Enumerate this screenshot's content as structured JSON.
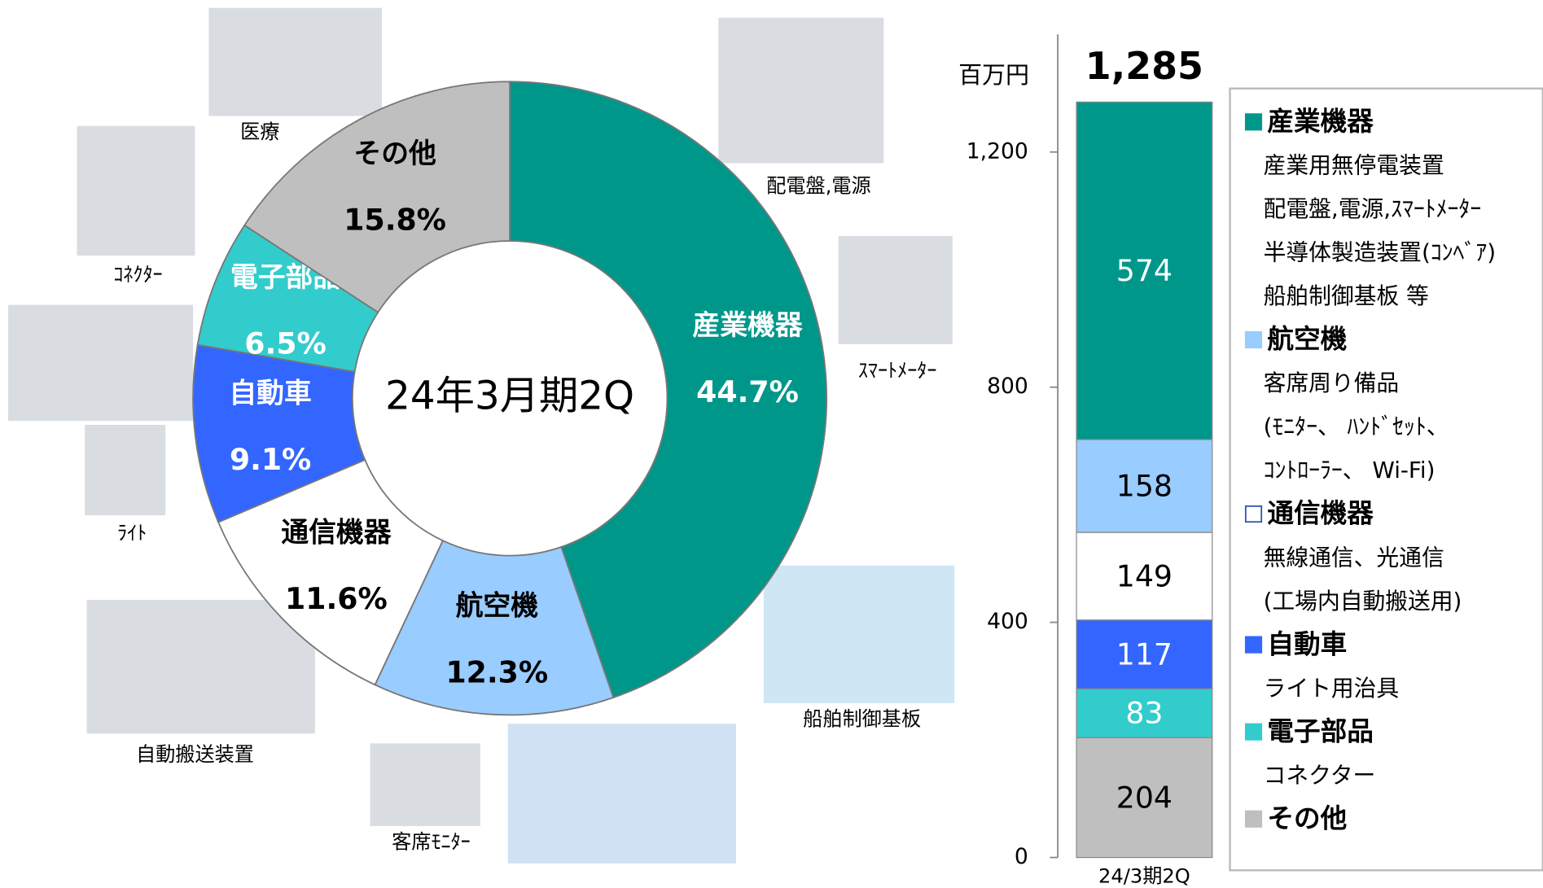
{
  "chart_data": [
    {
      "type": "pie",
      "center_label": "24年3月期2Q",
      "categories": [
        "産業機器",
        "航空機",
        "通信機器",
        "自動車",
        "電子部品",
        "その他"
      ],
      "values": [
        44.7,
        12.3,
        11.6,
        9.1,
        6.5,
        15.8
      ],
      "value_labels": [
        "44.7%",
        "12.3%",
        "11.6%",
        "9.1%",
        "6.5%",
        "15.8%"
      ],
      "colors": [
        "#00978b",
        "#99ccff",
        "#ffffff",
        "#3366ff",
        "#33cccc",
        "#bfbfbf"
      ],
      "photo_captions": [
        "医療",
        "配電盤,電源",
        "ｽﾏｰﾄﾒｰﾀｰ",
        "ｺﾈｸﾀｰ",
        "ﾗｲﾄ",
        "船舶制御基板",
        "自動搬送装置",
        "客席ﾓﾆﾀｰ"
      ]
    },
    {
      "type": "stacked_bar",
      "y_label": "百万円",
      "categories": [
        "24/3期2Q"
      ],
      "total": 1285,
      "total_label": "1,285",
      "ylim": [
        0,
        1400
      ],
      "yticks": [
        0,
        400,
        800,
        {
          "value": 1200,
          "label": "1,200"
        }
      ],
      "series": [
        {
          "name": "産業機器",
          "color": "#00978b",
          "values": [
            574
          ],
          "description": [
            "産業用無停電装置",
            "配電盤,電源,ｽﾏｰﾄﾒｰﾀｰ",
            "半導体製造装置(ｺﾝﾍﾞｱ)",
            "船舶制御基板 等"
          ]
        },
        {
          "name": "航空機",
          "color": "#99ccff",
          "values": [
            158
          ],
          "description": [
            "客席周り備品",
            "(ﾓﾆﾀｰ、 ﾊﾝﾄﾞｾｯﾄ、",
            "ｺﾝﾄﾛｰﾗｰ、 Wi-Fi)"
          ]
        },
        {
          "name": "通信機器",
          "color": "#ffffff",
          "values": [
            149
          ],
          "description": [
            "無線通信、光通信",
            "(工場内自動搬送用)"
          ]
        },
        {
          "name": "自動車",
          "color": "#3366ff",
          "values": [
            117
          ],
          "description": [
            "ライト用治具"
          ]
        },
        {
          "name": "電子部品",
          "color": "#33cccc",
          "values": [
            83
          ],
          "description": [
            "コネクター"
          ]
        },
        {
          "name": "その他",
          "color": "#bfbfbf",
          "values": [
            204
          ]
        }
      ]
    }
  ]
}
